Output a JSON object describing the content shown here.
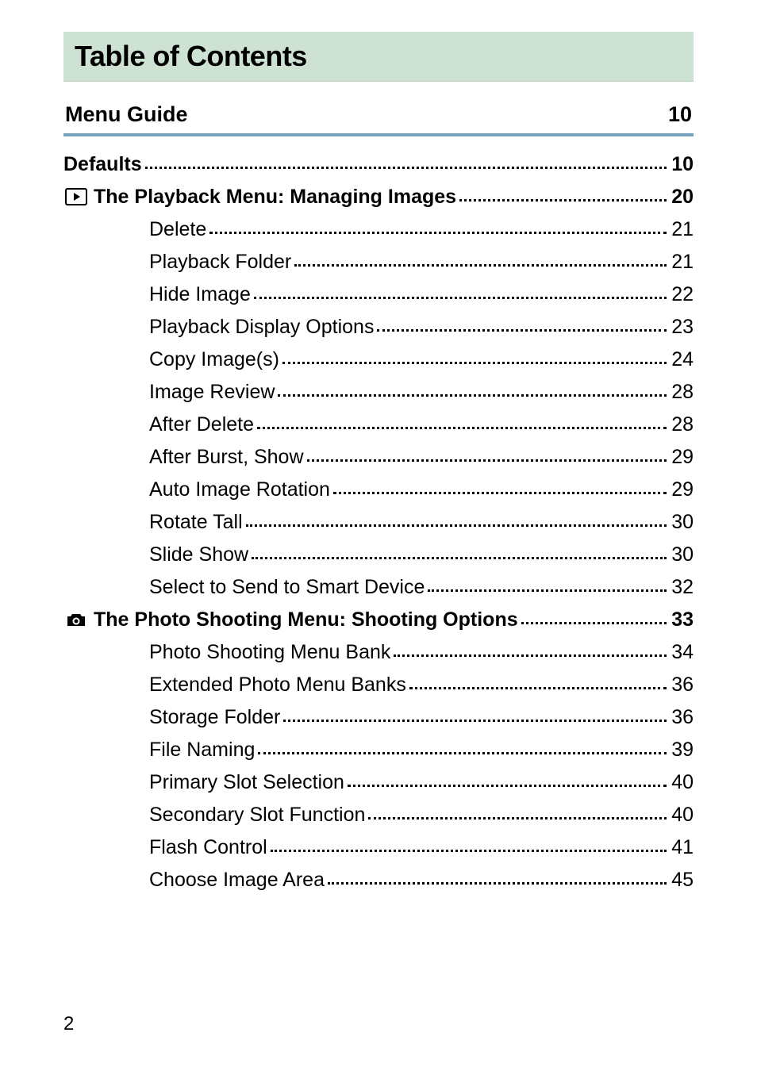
{
  "title": "Table of Contents",
  "section": {
    "label": "Menu Guide",
    "page": "10"
  },
  "entries": [
    {
      "level": 0,
      "icon": null,
      "label": "Defaults",
      "page": "10"
    },
    {
      "level": 1,
      "icon": "play",
      "label": "The Playback Menu: Managing Images",
      "page": "20"
    },
    {
      "level": 2,
      "icon": null,
      "label": "Delete",
      "page": "21"
    },
    {
      "level": 2,
      "icon": null,
      "label": "Playback Folder",
      "page": "21"
    },
    {
      "level": 2,
      "icon": null,
      "label": "Hide Image",
      "page": "22"
    },
    {
      "level": 2,
      "icon": null,
      "label": "Playback Display Options",
      "page": "23"
    },
    {
      "level": 2,
      "icon": null,
      "label": "Copy Image(s)",
      "page": "24"
    },
    {
      "level": 2,
      "icon": null,
      "label": "Image Review",
      "page": "28"
    },
    {
      "level": 2,
      "icon": null,
      "label": "After Delete",
      "page": "28"
    },
    {
      "level": 2,
      "icon": null,
      "label": "After Burst, Show",
      "page": "29"
    },
    {
      "level": 2,
      "icon": null,
      "label": "Auto Image Rotation",
      "page": "29"
    },
    {
      "level": 2,
      "icon": null,
      "label": "Rotate Tall",
      "page": "30"
    },
    {
      "level": 2,
      "icon": null,
      "label": "Slide Show",
      "page": "30"
    },
    {
      "level": 2,
      "icon": null,
      "label": "Select to Send to Smart Device",
      "page": "32"
    },
    {
      "level": 1,
      "icon": "camera",
      "label": "The Photo Shooting Menu: Shooting Options",
      "page": "33"
    },
    {
      "level": 2,
      "icon": null,
      "label": "Photo Shooting Menu Bank",
      "page": "34"
    },
    {
      "level": 2,
      "icon": null,
      "label": "Extended Photo Menu Banks",
      "page": "36"
    },
    {
      "level": 2,
      "icon": null,
      "label": "Storage Folder",
      "page": "36"
    },
    {
      "level": 2,
      "icon": null,
      "label": "File Naming",
      "page": "39"
    },
    {
      "level": 2,
      "icon": null,
      "label": "Primary Slot Selection",
      "page": "40"
    },
    {
      "level": 2,
      "icon": null,
      "label": "Secondary Slot Function",
      "page": "40"
    },
    {
      "level": 2,
      "icon": null,
      "label": "Flash Control",
      "page": "41"
    },
    {
      "level": 2,
      "icon": null,
      "label": "Choose Image Area",
      "page": "45"
    }
  ],
  "pageNumber": "2",
  "colors": {
    "titleBg": "#cde2d3",
    "sectionRule": "#77a1bb",
    "text": "#000000",
    "pageBg": "#ffffff"
  },
  "typography": {
    "titleFontSize": 36,
    "sectionFontSize": 27,
    "entryFontSize": 25,
    "pageNumFontSize": 24
  }
}
